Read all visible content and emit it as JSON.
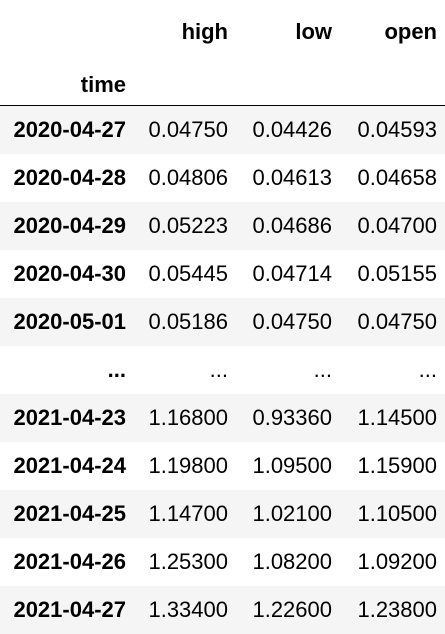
{
  "table": {
    "index_name": "time",
    "columns": [
      "high",
      "low",
      "open"
    ],
    "rows": [
      {
        "index": "2020-04-27",
        "values": [
          "0.04750",
          "0.04426",
          "0.04593"
        ]
      },
      {
        "index": "2020-04-28",
        "values": [
          "0.04806",
          "0.04613",
          "0.04658"
        ]
      },
      {
        "index": "2020-04-29",
        "values": [
          "0.05223",
          "0.04686",
          "0.04700"
        ]
      },
      {
        "index": "2020-04-30",
        "values": [
          "0.05445",
          "0.04714",
          "0.05155"
        ]
      },
      {
        "index": "2020-05-01",
        "values": [
          "0.05186",
          "0.04750",
          "0.04750"
        ]
      },
      {
        "index": "...",
        "values": [
          "...",
          "...",
          "..."
        ]
      },
      {
        "index": "2021-04-23",
        "values": [
          "1.16800",
          "0.93360",
          "1.14500"
        ]
      },
      {
        "index": "2021-04-24",
        "values": [
          "1.19800",
          "1.09500",
          "1.15900"
        ]
      },
      {
        "index": "2021-04-25",
        "values": [
          "1.14700",
          "1.02100",
          "1.10500"
        ]
      },
      {
        "index": "2021-04-26",
        "values": [
          "1.25300",
          "1.08200",
          "1.09200"
        ]
      },
      {
        "index": "2021-04-27",
        "values": [
          "1.33400",
          "1.22600",
          "1.23800"
        ]
      }
    ]
  }
}
